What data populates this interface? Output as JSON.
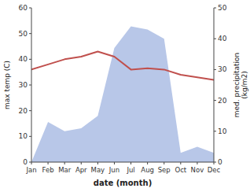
{
  "chart_data": {
    "type": "line",
    "xlabel": "date (month)",
    "ylabel": "max temp (C)",
    "y2label": "med. precipitation\n(kg/m2)",
    "categories": [
      "Jan",
      "Feb",
      "Mar",
      "Apr",
      "May",
      "Jun",
      "Jul",
      "Aug",
      "Sep",
      "Oct",
      "Nov",
      "Dec"
    ],
    "series": [
      {
        "type": "area",
        "axis": "y2",
        "color": "#b8c7e8",
        "values": [
          0,
          13,
          10,
          11,
          15,
          37,
          44,
          43,
          40,
          3,
          5,
          3
        ]
      },
      {
        "type": "line",
        "color": "#c0504d",
        "values": [
          36,
          38,
          40,
          41,
          43,
          41,
          36,
          36.5,
          36,
          34,
          33,
          32
        ]
      }
    ],
    "ylim": [
      0,
      60
    ],
    "yticks": [
      0,
      10,
      20,
      30,
      40,
      50,
      60
    ],
    "y2lim": [
      0,
      50
    ],
    "y2ticks": [
      0,
      10,
      20,
      30,
      40,
      50
    ],
    "grid": false
  }
}
